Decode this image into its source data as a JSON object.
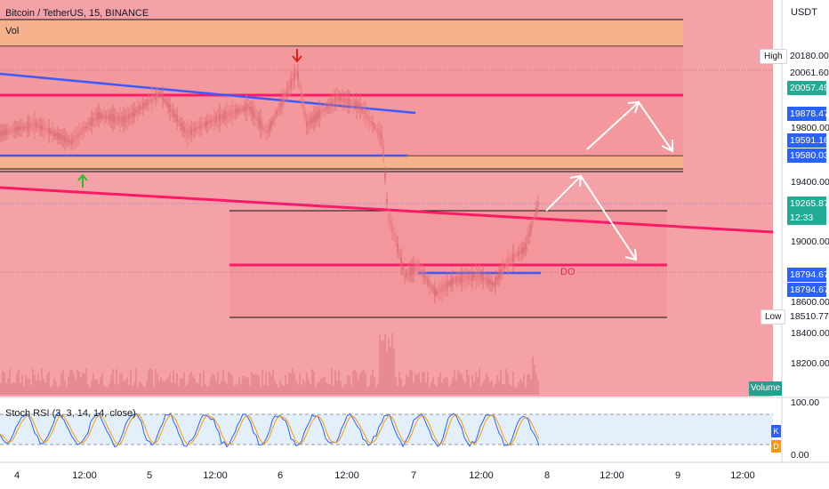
{
  "header": {
    "title": "Bitcoin / TetherUS, 15, BINANCE",
    "volume_label": "Vol",
    "currency": "USDT"
  },
  "price_axis": {
    "ticks": [
      "19800.00",
      "19400.00",
      "19000.00",
      "18600.00",
      "18400.00",
      "18200.00"
    ],
    "tags": {
      "high": "20180.00",
      "t1": "20061.60",
      "t2": "20057.49",
      "t3": "19878.47",
      "t4": "19591.16",
      "t5": "19580.03",
      "current": "19265.87",
      "countdown": "12:33",
      "t6": "18794.67",
      "t7": "18794.67",
      "low": "18510.77"
    },
    "high_label": "High",
    "low_label": "Low"
  },
  "volume_button": "Volume",
  "annotation_do": "DO",
  "stoch": {
    "label": "Stoch RSI (3, 3, 14, 14, close)",
    "ticks": [
      "100.00",
      "0.00"
    ],
    "k_label": "K",
    "d_label": "D"
  },
  "time_axis": [
    "4",
    "12:00",
    "5",
    "12:00",
    "6",
    "12:00",
    "7",
    "12:00",
    "8",
    "12:00",
    "9",
    "12:00"
  ],
  "colors": {
    "background_zone": "#f5a3a8",
    "orange_zone": "#f6b08e",
    "magenta_line": "#ff1a66",
    "blue_line": "#3b5bff",
    "up_arrow": "#2eb82e",
    "down_arrow": "#e02020",
    "k_color": "#2962ff",
    "d_color": "#ff9800"
  }
}
